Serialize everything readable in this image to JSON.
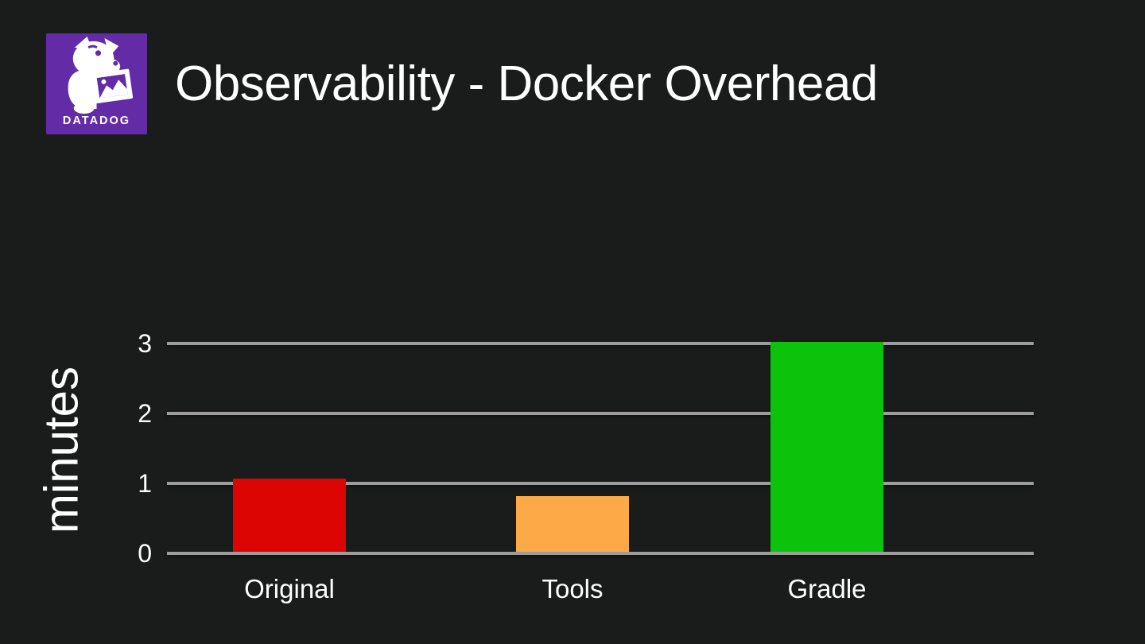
{
  "slide": {
    "title": "Observability - Docker Overhead",
    "background": "#1a1b1b",
    "text_color": "#ffffff"
  },
  "logo": {
    "name": "Datadog",
    "wordmark": "DATADOG",
    "brand_color": "#632ca6",
    "icon": "datadog-dog-with-picture"
  },
  "chart_data": {
    "type": "bar",
    "title": "",
    "xlabel": "",
    "ylabel": "minutes",
    "categories": [
      "Original",
      "Tools",
      "Gradle"
    ],
    "values": [
      1.05,
      0.8,
      3
    ],
    "bar_colors": [
      "#dd0404",
      "#fbaa47",
      "#0cc30c"
    ],
    "yticks": [
      0,
      1,
      2,
      3
    ],
    "ylim": [
      0,
      3
    ],
    "grid": true,
    "gridline_color": "#9d9d9d",
    "legend": false
  }
}
